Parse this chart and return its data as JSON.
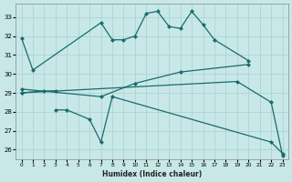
{
  "xlabel": "Humidex (Indice chaleur)",
  "bg_color": "#c8e8e8",
  "line_color": "#1a6b6b",
  "grid_color": "#a8d0d0",
  "xlim": [
    -0.5,
    23.5
  ],
  "ylim": [
    25.5,
    33.7
  ],
  "yticks": [
    26,
    27,
    28,
    29,
    30,
    31,
    32,
    33
  ],
  "xticks": [
    0,
    1,
    2,
    3,
    4,
    5,
    6,
    7,
    8,
    9,
    10,
    11,
    12,
    13,
    14,
    15,
    16,
    17,
    18,
    19,
    20,
    21,
    22,
    23
  ],
  "series": [
    {
      "x": [
        0,
        1,
        7,
        8,
        9,
        10,
        11,
        12,
        13,
        14,
        15,
        16,
        17,
        20
      ],
      "y": [
        31.9,
        30.2,
        32.7,
        31.8,
        31.8,
        32.0,
        33.2,
        33.3,
        32.5,
        32.4,
        33.3,
        32.6,
        31.8,
        30.7
      ]
    },
    {
      "x": [
        0,
        19,
        22,
        23
      ],
      "y": [
        29.0,
        29.6,
        28.5,
        25.7
      ]
    },
    {
      "x": [
        0,
        7,
        10,
        14,
        20
      ],
      "y": [
        29.2,
        28.8,
        29.5,
        30.1,
        30.5
      ]
    },
    {
      "x": [
        0,
        2,
        3
      ],
      "y": [
        29.0,
        29.1,
        29.1
      ]
    },
    {
      "x": [
        3,
        4,
        6,
        7,
        8,
        22,
        23
      ],
      "y": [
        28.1,
        28.1,
        27.6,
        26.4,
        28.8,
        26.4,
        25.8
      ]
    }
  ]
}
